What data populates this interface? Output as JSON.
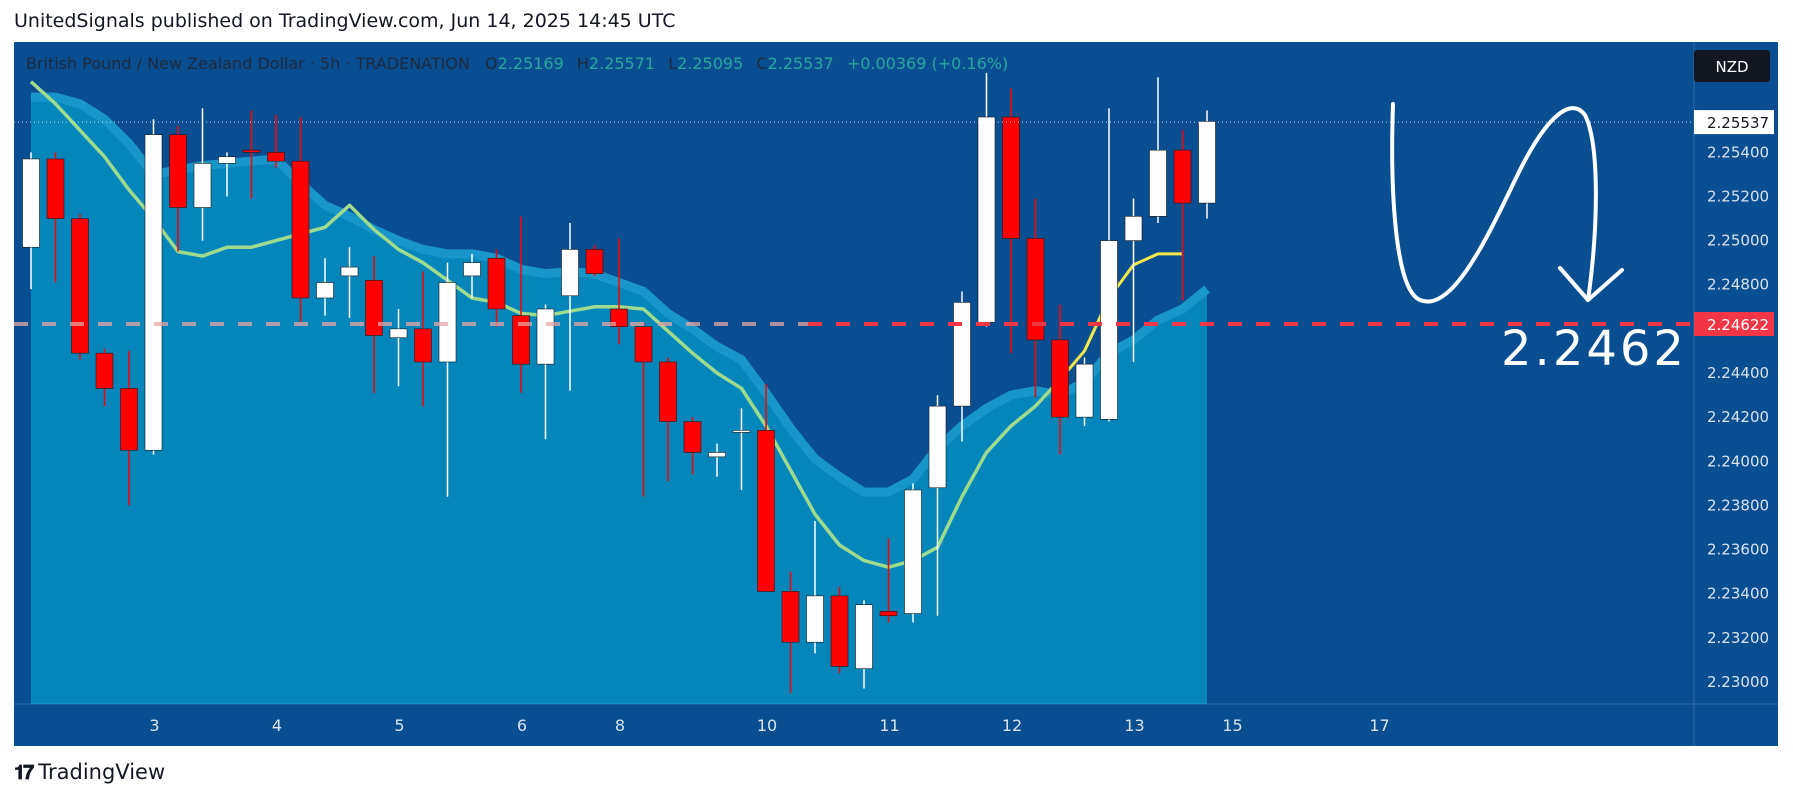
{
  "header": {
    "published": "UnitedSignals published on TradingView.com, Jun 14, 2025 14:45 UTC"
  },
  "footer": {
    "brand": "TradingView"
  },
  "colors": {
    "background": "#0a4e92",
    "cloud": "#0586bb",
    "band": "#1996c9",
    "bull": "#ffffff",
    "bear": "#ff0000",
    "ma_green": "#9edb8c",
    "ma_yellow": "#f5e84c",
    "level": "#f23645"
  },
  "chart_data": {
    "type": "candlestick",
    "legend": {
      "symbol": "British Pound / New Zealand Dollar · 5h · TRADENATION",
      "o_label": "O",
      "o": "2.25169",
      "h_label": "H",
      "h": "2.25571",
      "l_label": "L",
      "l": "2.25095",
      "c_label": "C",
      "c": "2.25537",
      "change": "+0.00369 (+0.16%)"
    },
    "currency": "NZD",
    "ylim": [
      2.229,
      2.259
    ],
    "y_ticks": [
      "2.25400",
      "2.25200",
      "2.25000",
      "2.24800",
      "2.24600",
      "2.24400",
      "2.24200",
      "2.24000",
      "2.23800",
      "2.23600",
      "2.23400",
      "2.23200",
      "2.23000"
    ],
    "x_ticks": [
      {
        "label": "3",
        "i": 5
      },
      {
        "label": "4",
        "i": 10
      },
      {
        "label": "5",
        "i": 15
      },
      {
        "label": "6",
        "i": 20
      },
      {
        "label": "8",
        "i": 24
      },
      {
        "label": "10",
        "i": 30
      },
      {
        "label": "11",
        "i": 35
      },
      {
        "label": "12",
        "i": 40
      },
      {
        "label": "13",
        "i": 45
      },
      {
        "label": "15",
        "i": 49
      },
      {
        "label": "17",
        "i": 55
      }
    ],
    "candles": [
      {
        "o": 2.2497,
        "h": 2.254,
        "l": 2.2478,
        "c": 2.2537
      },
      {
        "o": 2.2537,
        "h": 2.254,
        "l": 2.2481,
        "c": 2.251
      },
      {
        "o": 2.251,
        "h": 2.2512,
        "l": 2.2446,
        "c": 2.2449
      },
      {
        "o": 2.2449,
        "h": 2.2451,
        "l": 2.2425,
        "c": 2.2433
      },
      {
        "o": 2.2433,
        "h": 2.245,
        "l": 2.238,
        "c": 2.2405
      },
      {
        "o": 2.2405,
        "h": 2.2555,
        "l": 2.2403,
        "c": 2.2548
      },
      {
        "o": 2.2548,
        "h": 2.2552,
        "l": 2.2495,
        "c": 2.2515
      },
      {
        "o": 2.2515,
        "h": 2.256,
        "l": 2.25,
        "c": 2.2535
      },
      {
        "o": 2.2535,
        "h": 2.254,
        "l": 2.252,
        "c": 2.2538
      },
      {
        "o": 2.2541,
        "h": 2.2559,
        "l": 2.2519,
        "c": 2.254
      },
      {
        "o": 2.254,
        "h": 2.2557,
        "l": 2.2533,
        "c": 2.2536
      },
      {
        "o": 2.2536,
        "h": 2.2556,
        "l": 2.2463,
        "c": 2.2474
      },
      {
        "o": 2.2474,
        "h": 2.2492,
        "l": 2.2466,
        "c": 2.2481
      },
      {
        "o": 2.2484,
        "h": 2.2497,
        "l": 2.2465,
        "c": 2.2488
      },
      {
        "o": 2.2482,
        "h": 2.2493,
        "l": 2.2431,
        "c": 2.2457
      },
      {
        "o": 2.2456,
        "h": 2.2469,
        "l": 2.2434,
        "c": 2.246
      },
      {
        "o": 2.246,
        "h": 2.2486,
        "l": 2.2425,
        "c": 2.2445
      },
      {
        "o": 2.2445,
        "h": 2.249,
        "l": 2.2384,
        "c": 2.2481
      },
      {
        "o": 2.2484,
        "h": 2.2494,
        "l": 2.2474,
        "c": 2.249
      },
      {
        "o": 2.2492,
        "h": 2.2496,
        "l": 2.2461,
        "c": 2.2469
      },
      {
        "o": 2.2466,
        "h": 2.2511,
        "l": 2.2431,
        "c": 2.2444
      },
      {
        "o": 2.2444,
        "h": 2.2471,
        "l": 2.241,
        "c": 2.2469
      },
      {
        "o": 2.2475,
        "h": 2.2508,
        "l": 2.2432,
        "c": 2.2496
      },
      {
        "o": 2.2496,
        "h": 2.2498,
        "l": 2.2484,
        "c": 2.2485
      },
      {
        "o": 2.2469,
        "h": 2.2501,
        "l": 2.2453,
        "c": 2.2461
      },
      {
        "o": 2.2461,
        "h": 2.2463,
        "l": 2.2384,
        "c": 2.2445
      },
      {
        "o": 2.2445,
        "h": 2.2447,
        "l": 2.2391,
        "c": 2.2418
      },
      {
        "o": 2.2418,
        "h": 2.242,
        "l": 2.2394,
        "c": 2.2404
      },
      {
        "o": 2.2402,
        "h": 2.2408,
        "l": 2.2393,
        "c": 2.2404
      },
      {
        "o": 2.2414,
        "h": 2.2424,
        "l": 2.2387,
        "c": 2.2414
      },
      {
        "o": 2.2414,
        "h": 2.2435,
        "l": 2.2341,
        "c": 2.2341
      },
      {
        "o": 2.2341,
        "h": 2.235,
        "l": 2.2295,
        "c": 2.2318
      },
      {
        "o": 2.2318,
        "h": 2.2373,
        "l": 2.2313,
        "c": 2.2339
      },
      {
        "o": 2.2339,
        "h": 2.2343,
        "l": 2.2304,
        "c": 2.2307
      },
      {
        "o": 2.2306,
        "h": 2.2337,
        "l": 2.2297,
        "c": 2.2335
      },
      {
        "o": 2.2332,
        "h": 2.2365,
        "l": 2.2327,
        "c": 2.233
      },
      {
        "o": 2.2331,
        "h": 2.239,
        "l": 2.2327,
        "c": 2.2387
      },
      {
        "o": 2.2388,
        "h": 2.243,
        "l": 2.233,
        "c": 2.2425
      },
      {
        "o": 2.2425,
        "h": 2.2477,
        "l": 2.2409,
        "c": 2.2472
      },
      {
        "o": 2.2463,
        "h": 2.2576,
        "l": 2.2461,
        "c": 2.2556
      },
      {
        "o": 2.2556,
        "h": 2.2569,
        "l": 2.2449,
        "c": 2.2501
      },
      {
        "o": 2.2501,
        "h": 2.2519,
        "l": 2.2429,
        "c": 2.2455
      },
      {
        "o": 2.2455,
        "h": 2.2471,
        "l": 2.2403,
        "c": 2.242
      },
      {
        "o": 2.242,
        "h": 2.2447,
        "l": 2.2416,
        "c": 2.2444
      },
      {
        "o": 2.2419,
        "h": 2.256,
        "l": 2.2418,
        "c": 2.25
      },
      {
        "o": 2.25,
        "h": 2.2519,
        "l": 2.2445,
        "c": 2.2511
      },
      {
        "o": 2.2511,
        "h": 2.2574,
        "l": 2.2508,
        "c": 2.2541
      },
      {
        "o": 2.2541,
        "h": 2.255,
        "l": 2.2473,
        "c": 2.2517
      },
      {
        "o": 2.2517,
        "h": 2.2559,
        "l": 2.251,
        "c": 2.2554
      }
    ],
    "cloud_upper": [
      2.2565,
      2.2565,
      2.2562,
      2.2555,
      2.2544,
      2.253,
      2.2532,
      2.2534,
      2.2535,
      2.2536,
      2.2537,
      2.2526,
      2.2516,
      2.2511,
      2.2505,
      2.25,
      2.2496,
      2.2494,
      2.2494,
      2.2492,
      2.2487,
      2.2485,
      2.2486,
      2.2485,
      2.2481,
      2.2477,
      2.2467,
      2.246,
      2.2452,
      2.2446,
      2.2431,
      2.2415,
      2.2401,
      2.2393,
      2.2386,
      2.2386,
      2.2392,
      2.2406,
      2.2416,
      2.2424,
      2.243,
      2.2432,
      2.243,
      2.2436,
      2.2449,
      2.2455,
      2.2464,
      2.2469,
      2.2478
    ],
    "ma_green": [
      2.2572,
      2.2562,
      2.255,
      2.2538,
      2.2523,
      2.251,
      2.2495,
      2.2493,
      2.2497,
      2.2497,
      2.25,
      2.2503,
      2.2506,
      2.2516,
      2.2505,
      2.2496,
      2.249,
      2.2482,
      2.2474,
      2.2472,
      2.2467,
      2.2466,
      2.2468,
      2.247,
      2.247,
      2.2469,
      2.2459,
      2.2449,
      2.244,
      2.2433,
      2.2416,
      2.2396,
      2.2376,
      2.2362,
      2.2355,
      2.2352,
      2.2355,
      2.2361,
      2.2384,
      2.2404,
      2.2416,
      2.2425,
      2.2437
    ]
  },
  "levels": {
    "current": "2.25537",
    "target": "2.24622",
    "target_value": 2.24622,
    "current_value": 2.25537
  },
  "annotation": {
    "target_text": "2.2462"
  }
}
